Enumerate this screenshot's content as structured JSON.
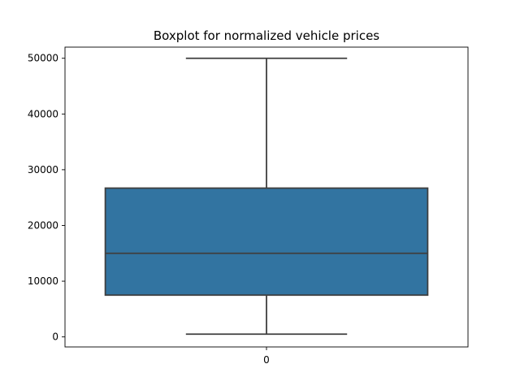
{
  "chart_data": {
    "type": "box",
    "title": "Boxplot for normalized vehicle prices",
    "xlabel": "",
    "ylabel": "",
    "categories": [
      "0"
    ],
    "boxes": [
      {
        "category": "0",
        "whisker_low": 500,
        "q1": 7500,
        "median": 15000,
        "q3": 26700,
        "whisker_high": 50000
      }
    ],
    "ylim": [
      -1800,
      52000
    ],
    "yticks": [
      0,
      10000,
      20000,
      30000,
      40000,
      50000
    ],
    "ytick_labels": [
      "0",
      "10000",
      "20000",
      "30000",
      "40000",
      "50000"
    ],
    "grid": false,
    "colors": {
      "box_fill": "#3274a1",
      "box_edge": "#3f3f3f",
      "axes": "#000000"
    }
  }
}
